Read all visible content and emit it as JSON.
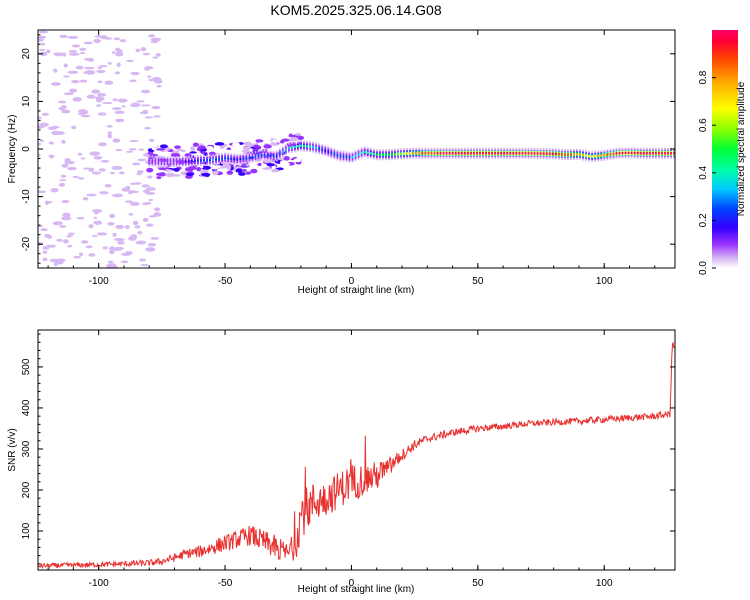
{
  "title": "KOM5.2025.325.06.14.G08",
  "colors": {
    "snr_line": "#e8302f",
    "frame": "#000000",
    "background": "#ffffff",
    "colormap": [
      "#ffffff",
      "#d7b8f2",
      "#9933ff",
      "#3300ff",
      "#0044ff",
      "#00c8ff",
      "#00ffaa",
      "#00ff33",
      "#88ff00",
      "#ffff00",
      "#ffaa00",
      "#ff4400",
      "#ff0033",
      "#ff0066"
    ]
  },
  "chart_data": [
    {
      "type": "heatmap",
      "name": "spectrogram",
      "xlabel": "Height of straight line (km)",
      "ylabel": "Frequency (Hz)",
      "xlim": [
        -124,
        128
      ],
      "ylim": [
        -25,
        25
      ],
      "xticks": [
        -100,
        -50,
        0,
        50,
        100
      ],
      "yticks": [
        -20,
        -10,
        0,
        10,
        20
      ],
      "colorbar": {
        "label": "Normalized spectral amplitude",
        "range": [
          0.0,
          1.0
        ],
        "ticks": [
          "0.0",
          "0.2",
          "0.4",
          "0.6",
          "0.8"
        ],
        "tick_values": [
          0.0,
          0.2,
          0.4,
          0.6,
          0.8
        ]
      },
      "ridge": {
        "description": "dominant frequency track (Hz) vs height (km)",
        "x": [
          -80,
          -72,
          -65,
          -60,
          -55,
          -50,
          -45,
          -40,
          -35,
          -30,
          -25,
          -20,
          -15,
          -10,
          -5,
          0,
          5,
          10,
          15,
          20,
          25,
          30,
          40,
          50,
          60,
          70,
          80,
          85,
          90,
          95,
          100,
          105,
          110,
          115,
          120,
          128
        ],
        "freq": [
          -2.5,
          -2.7,
          -2.6,
          -2.4,
          -2.3,
          -1.9,
          -2.2,
          -1.8,
          -1.2,
          -1.6,
          0.2,
          0.7,
          0.4,
          -0.4,
          -1.4,
          -1.8,
          -0.6,
          -1.2,
          -1.2,
          -1.0,
          -0.9,
          -0.9,
          -0.9,
          -0.9,
          -0.9,
          -0.9,
          -1.0,
          -1.2,
          -1.1,
          -1.6,
          -1.3,
          -0.9,
          -0.8,
          -0.9,
          -0.9,
          -0.9
        ],
        "amplitude": [
          0.1,
          0.15,
          0.2,
          0.3,
          0.35,
          0.3,
          0.25,
          0.3,
          0.35,
          0.3,
          0.4,
          0.5,
          0.4,
          0.25,
          0.3,
          0.35,
          0.45,
          0.5,
          0.55,
          0.65,
          0.75,
          0.85,
          0.95,
          0.95,
          0.95,
          0.95,
          0.9,
          0.85,
          0.75,
          0.7,
          0.8,
          0.9,
          0.95,
          0.95,
          0.95,
          0.95
        ]
      }
    },
    {
      "type": "line",
      "name": "snr",
      "xlabel": "Height of straight line (km)",
      "ylabel": "SNR (v/v)",
      "xlim": [
        -124,
        128
      ],
      "ylim": [
        5,
        590
      ],
      "xticks": [
        -100,
        -50,
        0,
        50,
        100
      ],
      "yticks": [
        100,
        200,
        300,
        400,
        500
      ],
      "series": [
        {
          "name": "SNR",
          "x": [
            -124,
            -110,
            -100,
            -90,
            -80,
            -75,
            -70,
            -65,
            -60,
            -55,
            -50,
            -45,
            -40,
            -35,
            -30,
            -25,
            -22,
            -20,
            -15,
            -10,
            -5,
            0,
            5,
            10,
            15,
            20,
            25,
            30,
            40,
            50,
            60,
            70,
            80,
            90,
            100,
            110,
            120,
            126,
            127,
            128
          ],
          "values": [
            15,
            17,
            18,
            20,
            22,
            26,
            35,
            45,
            50,
            60,
            70,
            80,
            90,
            75,
            60,
            45,
            70,
            140,
            170,
            180,
            200,
            220,
            225,
            235,
            255,
            285,
            310,
            325,
            340,
            350,
            355,
            362,
            365,
            368,
            372,
            376,
            380,
            385,
            560,
            540
          ],
          "noise_amplitude": [
            6,
            6,
            6,
            7,
            8,
            9,
            10,
            12,
            15,
            18,
            20,
            22,
            25,
            28,
            30,
            25,
            40,
            60,
            50,
            45,
            45,
            45,
            40,
            35,
            25,
            15,
            12,
            10,
            9,
            9,
            8,
            8,
            8,
            8,
            8,
            8,
            8,
            8,
            10,
            10
          ]
        }
      ]
    }
  ]
}
